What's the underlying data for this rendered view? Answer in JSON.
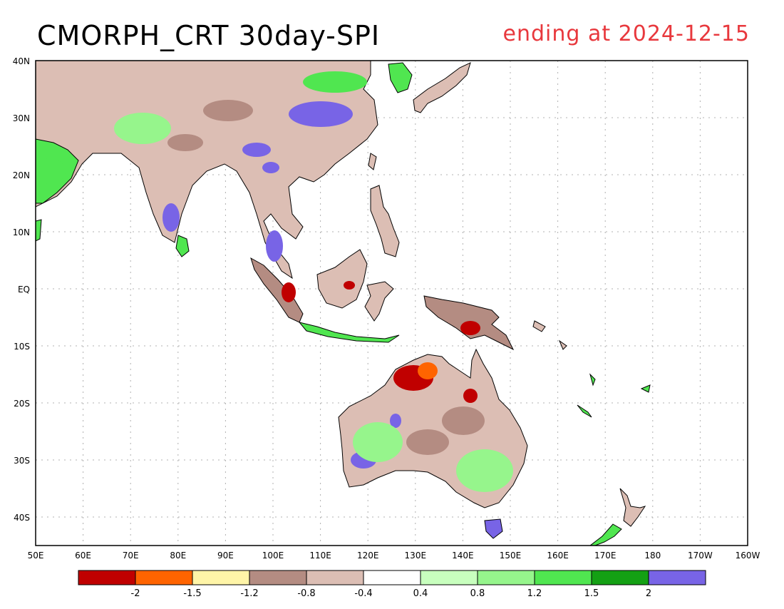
{
  "header": {
    "title": "CMORPH_CRT 30day-SPI",
    "date_label": "ending at 2024-12-15"
  },
  "axes": {
    "lat_labels": [
      "40N",
      "30N",
      "20N",
      "10N",
      "EQ",
      "10S",
      "20S",
      "30S",
      "40S"
    ],
    "lon_labels": [
      "50E",
      "60E",
      "70E",
      "80E",
      "90E",
      "100E",
      "110E",
      "120E",
      "130E",
      "140E",
      "150E",
      "160E",
      "170E",
      "180",
      "170W",
      "160W"
    ]
  },
  "legend": {
    "colors": [
      "#c00000",
      "#ff6400",
      "#fff5a8",
      "#b48c82",
      "#dcbeb4",
      "#ffffff",
      "#c8ffbe",
      "#96f58c",
      "#50e650",
      "#14a014",
      "#7864e6"
    ],
    "labels": [
      "-2",
      "-1.5",
      "-1.2",
      "-0.8",
      "-0.4",
      "0.4",
      "0.8",
      "1.2",
      "1.5",
      "2"
    ]
  },
  "colors": {
    "title_right": "#e8383d",
    "land_dry": "#b48c82",
    "land_wet": "#50e650",
    "very_wet": "#7864e6"
  }
}
